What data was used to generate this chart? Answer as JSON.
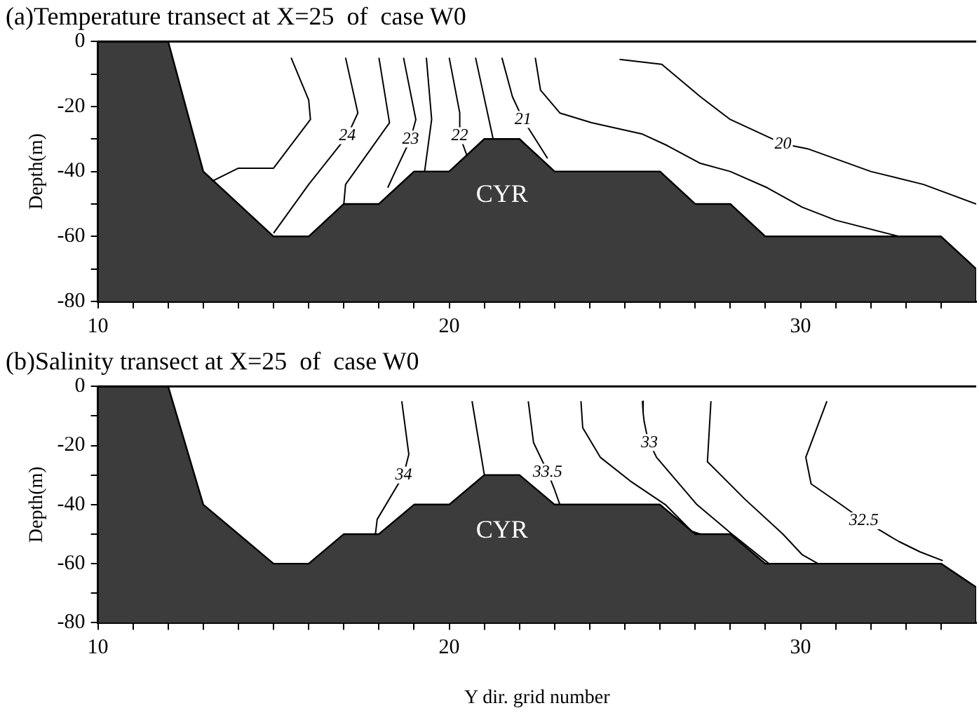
{
  "chart_data": [
    {
      "type": "line",
      "title": "(a)Temperature transect at X=25  of  case W0",
      "ylabel": "Depth(m)",
      "xlim": [
        10,
        35
      ],
      "ylim": [
        -80,
        0
      ],
      "xticks": [
        10,
        {
          "value": 11,
          "label": null
        },
        {
          "value": 12,
          "label": null
        },
        {
          "value": 13,
          "label": null
        },
        {
          "value": 14,
          "label": null
        },
        {
          "value": 15,
          "label": null
        },
        {
          "value": 16,
          "label": null
        },
        {
          "value": 17,
          "label": null
        },
        {
          "value": 18,
          "label": null
        },
        {
          "value": 19,
          "label": null
        },
        20,
        {
          "value": 21,
          "label": null
        },
        {
          "value": 22,
          "label": null
        },
        {
          "value": 23,
          "label": null
        },
        {
          "value": 24,
          "label": null
        },
        {
          "value": 25,
          "label": null
        },
        {
          "value": 26,
          "label": null
        },
        {
          "value": 27,
          "label": null
        },
        {
          "value": 28,
          "label": null
        },
        {
          "value": 29,
          "label": null
        },
        30,
        {
          "value": 31,
          "label": null
        },
        {
          "value": 32,
          "label": null
        },
        {
          "value": 33,
          "label": null
        },
        {
          "value": 34,
          "label": null
        }
      ],
      "yticks": [
        0,
        {
          "value": -10,
          "label": null
        },
        -20,
        {
          "value": -30,
          "label": null
        },
        -40,
        {
          "value": -50,
          "label": null
        },
        -60,
        {
          "value": -70,
          "label": null
        },
        -80
      ],
      "grid": false,
      "legend": false,
      "marker": "none",
      "line_style": "solid",
      "annotations": [
        "CYR"
      ],
      "series": [
        {
          "type": "area",
          "color": "#3c3c3c",
          "x": [
            10,
            10,
            12,
            13,
            15,
            16,
            17,
            18,
            19,
            20,
            21,
            22,
            23,
            26,
            27,
            28,
            29,
            34,
            35,
            35
          ],
          "values": [
            -80,
            0,
            0,
            -40,
            -60,
            -60,
            -50,
            -50,
            -40,
            -40,
            -30,
            -30,
            -40,
            -40,
            -50,
            -50,
            -60,
            -60,
            -70,
            -80
          ]
        },
        {
          "color": "#000000",
          "x": [
            15.5,
            16,
            16.05,
            15,
            14,
            13.25
          ],
          "values": [
            -5,
            -18,
            -24,
            -39,
            -39,
            -43
          ]
        },
        {
          "name": "24",
          "color": "#000000",
          "x": [
            17.05,
            17.4,
            17.1,
            16,
            15
          ],
          "values": [
            -5,
            -22,
            -29,
            -44,
            -59
          ]
        },
        {
          "color": "#000000",
          "x": [
            18,
            18.3,
            17.05,
            17
          ],
          "values": [
            -5,
            -25,
            -44,
            -50
          ]
        },
        {
          "name": "23",
          "color": "#000000",
          "x": [
            18.7,
            19.05,
            18.9,
            18.55,
            18.25
          ],
          "values": [
            -5,
            -24,
            -30,
            -38,
            -45
          ]
        },
        {
          "color": "#000000",
          "x": [
            19.35,
            19.5,
            19.3
          ],
          "values": [
            -5,
            -24,
            -40
          ]
        },
        {
          "name": "22",
          "color": "#000000",
          "x": [
            20,
            20.3,
            20.3,
            20.4,
            20.5
          ],
          "values": [
            -5,
            -22,
            -29,
            -32,
            -35
          ]
        },
        {
          "color": "#000000",
          "x": [
            20.75,
            21.25
          ],
          "values": [
            -5,
            -30
          ]
        },
        {
          "name": "21",
          "color": "#000000",
          "x": [
            21.5,
            21.8,
            22.1,
            22.45,
            22.8
          ],
          "values": [
            -5,
            -17,
            -24,
            -30,
            -36
          ]
        },
        {
          "color": "#000000",
          "x": [
            22.45,
            22.6,
            23.15,
            24.05,
            25.5,
            26.2,
            27.15,
            28,
            29.05,
            30.05,
            31,
            32.8
          ],
          "values": [
            -5,
            -15,
            -22,
            -25,
            -28.5,
            -32,
            -37.5,
            -40,
            -45,
            -51,
            -55,
            -60
          ]
        },
        {
          "name": "20",
          "color": "#000000",
          "x": [
            24.85,
            26.05,
            27.15,
            28,
            29.5,
            30.2,
            32,
            33.5,
            35
          ],
          "values": [
            -5.5,
            -7,
            -17,
            -24,
            -31.5,
            -33,
            -40,
            -44,
            -50
          ]
        }
      ]
    },
    {
      "type": "line",
      "title": "(b)Salinity transect at X=25  of  case W0",
      "xlabel": "Y dir. grid number",
      "ylabel": "Depth(m)",
      "xlim": [
        10,
        35
      ],
      "ylim": [
        -80,
        0
      ],
      "xticks": [
        10,
        {
          "value": 11,
          "label": null
        },
        {
          "value": 12,
          "label": null
        },
        {
          "value": 13,
          "label": null
        },
        {
          "value": 14,
          "label": null
        },
        {
          "value": 15,
          "label": null
        },
        {
          "value": 16,
          "label": null
        },
        {
          "value": 17,
          "label": null
        },
        {
          "value": 18,
          "label": null
        },
        {
          "value": 19,
          "label": null
        },
        20,
        {
          "value": 21,
          "label": null
        },
        {
          "value": 22,
          "label": null
        },
        {
          "value": 23,
          "label": null
        },
        {
          "value": 24,
          "label": null
        },
        {
          "value": 25,
          "label": null
        },
        {
          "value": 26,
          "label": null
        },
        {
          "value": 27,
          "label": null
        },
        {
          "value": 28,
          "label": null
        },
        {
          "value": 29,
          "label": null
        },
        30,
        {
          "value": 31,
          "label": null
        },
        {
          "value": 32,
          "label": null
        },
        {
          "value": 33,
          "label": null
        },
        {
          "value": 34,
          "label": null
        }
      ],
      "yticks": [
        0,
        {
          "value": -10,
          "label": null
        },
        -20,
        {
          "value": -30,
          "label": null
        },
        -40,
        {
          "value": -50,
          "label": null
        },
        -60,
        {
          "value": -70,
          "label": null
        },
        -80
      ],
      "grid": false,
      "legend": false,
      "marker": "none",
      "line_style": "solid",
      "annotations": [
        "CYR"
      ],
      "series": [
        {
          "type": "area",
          "color": "#3c3c3c",
          "x": [
            10,
            10,
            12,
            13,
            15,
            16,
            17,
            18,
            19,
            20,
            21,
            22,
            23,
            26,
            27,
            28,
            29,
            34,
            35,
            35
          ],
          "values": [
            -80,
            0,
            0,
            -40,
            -60,
            -60,
            -50,
            -50,
            -40,
            -40,
            -30,
            -30,
            -40,
            -40,
            -50,
            -50,
            -60,
            -60,
            -68,
            -80
          ]
        },
        {
          "name": "34",
          "color": "#000000",
          "x": [
            18.65,
            18.85,
            18.7,
            17.95,
            17.9
          ],
          "values": [
            -5,
            -23,
            -30,
            -45,
            -50
          ]
        },
        {
          "color": "#000000",
          "x": [
            20.65,
            21
          ],
          "values": [
            -5,
            -30
          ]
        },
        {
          "name": "33.5",
          "color": "#000000",
          "x": [
            22.25,
            22.4,
            22.8,
            23,
            23.15
          ],
          "values": [
            -5,
            -19,
            -29,
            -35,
            -40
          ]
        },
        {
          "color": "#000000",
          "x": [
            23.75,
            23.8,
            24.3,
            25.15,
            26.15,
            26.9,
            27.15
          ],
          "values": [
            -5,
            -14,
            -24,
            -32,
            -40,
            -49,
            -50
          ]
        },
        {
          "name": "33",
          "color": "#000000",
          "x": [
            25.5,
            25.52,
            25.55,
            25.62,
            25.7,
            25.9,
            27.05,
            28.05,
            29.1
          ],
          "values": [
            -5,
            -9,
            -12,
            -16,
            -19,
            -24,
            -40,
            -50,
            -60
          ]
        },
        {
          "color": "#000000",
          "x": [
            27.45,
            27.35,
            28.4,
            29.5,
            30.05,
            30.5
          ],
          "values": [
            -5,
            -25.5,
            -38,
            -50,
            -57,
            -60
          ]
        },
        {
          "name": "32.5",
          "color": "#000000",
          "x": [
            30.75,
            30.15,
            30.3,
            31.15,
            31.8,
            32.3,
            32.8,
            33.4,
            34.05
          ],
          "values": [
            -5,
            -24,
            -33,
            -40,
            -45.5,
            -49,
            -52.5,
            -56,
            -59
          ]
        }
      ]
    }
  ]
}
